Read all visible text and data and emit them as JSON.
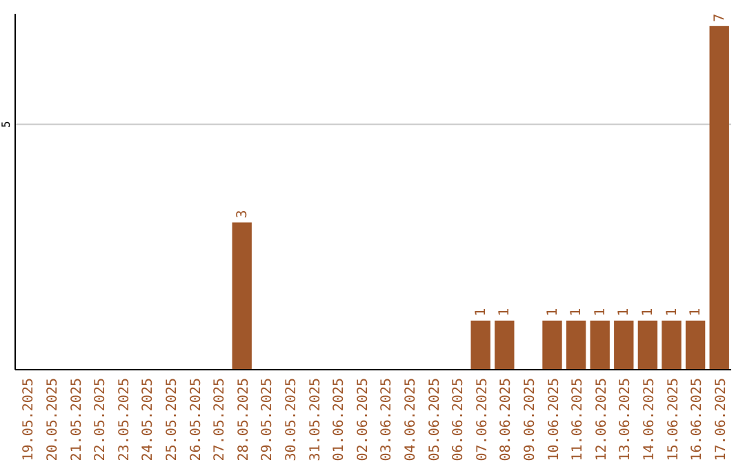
{
  "chart_data": {
    "type": "bar",
    "categories": [
      "19.05.2025",
      "20.05.2025",
      "21.05.2025",
      "22.05.2025",
      "23.05.2025",
      "24.05.2025",
      "25.05.2025",
      "26.05.2025",
      "27.05.2025",
      "28.05.2025",
      "29.05.2025",
      "30.05.2025",
      "31.05.2025",
      "01.06.2025",
      "02.06.2025",
      "03.06.2025",
      "04.06.2025",
      "05.06.2025",
      "06.06.2025",
      "07.06.2025",
      "08.06.2025",
      "09.06.2025",
      "10.06.2025",
      "11.06.2025",
      "12.06.2025",
      "13.06.2025",
      "14.06.2025",
      "15.06.2025",
      "16.06.2025",
      "17.06.2025"
    ],
    "values": [
      0,
      0,
      0,
      0,
      0,
      0,
      0,
      0,
      0,
      3,
      0,
      0,
      0,
      0,
      0,
      0,
      0,
      0,
      0,
      1,
      1,
      0,
      1,
      1,
      1,
      1,
      1,
      1,
      1,
      7
    ],
    "value_labels": [
      null,
      null,
      null,
      null,
      null,
      null,
      null,
      null,
      null,
      "3",
      null,
      null,
      null,
      null,
      null,
      null,
      null,
      null,
      null,
      "1",
      "1",
      null,
      "1",
      "1",
      "1",
      "1",
      "1",
      "1",
      "1",
      "7"
    ],
    "color": "#a0572a",
    "ylim": [
      0,
      7.25
    ],
    "yticks": [
      5
    ],
    "grid": "y"
  }
}
